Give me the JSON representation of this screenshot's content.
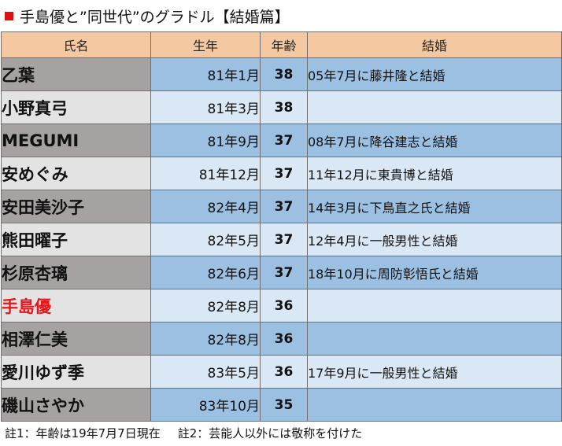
{
  "title": "手島優と”同世代”のグラドル【結婚篇】",
  "headers": {
    "name": "氏名",
    "birth": "生年",
    "age": "年齢",
    "marriage": "結婚"
  },
  "rows": [
    {
      "name": "乙葉",
      "birth": "81年1月",
      "age": "38",
      "marriage": "05年7月に藤井隆と結婚"
    },
    {
      "name": "小野真弓",
      "birth": "81年3月",
      "age": "38",
      "marriage": ""
    },
    {
      "name": "MEGUMI",
      "birth": "81年9月",
      "age": "37",
      "marriage": "08年7月に降谷建志と結婚"
    },
    {
      "name": "安めぐみ",
      "birth": "81年12月",
      "age": "37",
      "marriage": "11年12月に東貴博と結婚"
    },
    {
      "name": "安田美沙子",
      "birth": "82年4月",
      "age": "37",
      "marriage": "14年3月に下鳥直之氏と結婚"
    },
    {
      "name": "熊田曜子",
      "birth": "82年5月",
      "age": "37",
      "marriage": "12年4月に一般男性と結婚"
    },
    {
      "name": "杉原杏璃",
      "birth": "82年6月",
      "age": "37",
      "marriage": "18年10月に周防彰悟氏と結婚"
    },
    {
      "name": "手島優",
      "birth": "82年8月",
      "age": "36",
      "marriage": ""
    },
    {
      "name": "相澤仁美",
      "birth": "82年8月",
      "age": "36",
      "marriage": ""
    },
    {
      "name": "愛川ゆず季",
      "birth": "83年5月",
      "age": "36",
      "marriage": "17年9月に一般男性と結婚"
    },
    {
      "name": "磯山さやか",
      "birth": "83年10月",
      "age": "35",
      "marriage": ""
    }
  ],
  "notes": {
    "note1": "註1：年齢は19年7月7日現在",
    "note2": "註2：芸能人以外には敬称を付けた"
  },
  "colors": {
    "header_bg": "#f4c9a2",
    "name_dark": "#a6a2a2",
    "name_light": "#e3e3e3",
    "cell_dark": "#9cc0e2",
    "cell_light": "#dae8f6",
    "highlight_text": "#e8161b",
    "title_marker": "#e01010"
  }
}
